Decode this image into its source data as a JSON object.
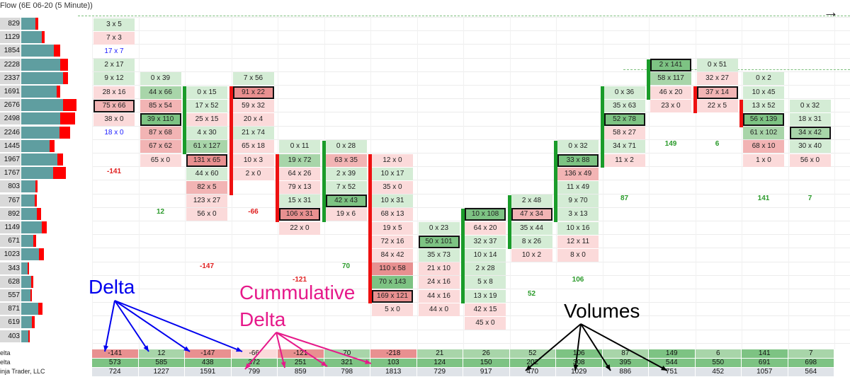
{
  "window": {
    "title": "Flow (6E 06-20 (5 Minute))",
    "arrow_icon": "arrow-right-icon"
  },
  "colors": {
    "pos_strong": "#7dc383",
    "pos_mid": "#a8d5a9",
    "pos_light": "#d4ecd5",
    "neg_strong": "#e89090",
    "neg_mid": "#f2b4b4",
    "neg_light": "#fbdada",
    "bar_teal": "#5f9ea0",
    "bar_red": "#ff0000",
    "up_bar": "#1a9c2a",
    "down_bar": "#ee1111",
    "blue_text": "#1a1aff",
    "delta_red": "#e02020",
    "delta_green": "#2a9a2a"
  },
  "volume_profile": [
    "829",
    "1129",
    "1854",
    "2228",
    "2337",
    "1691",
    "2676",
    "2498",
    "2246",
    "1445",
    "1967",
    "1767",
    "803",
    "767",
    "892",
    "1149",
    "671",
    "1023",
    "343",
    "628",
    "557",
    "871",
    "619",
    "403"
  ],
  "volume_bars": [
    {
      "teal": 0.29,
      "red": 0.06
    },
    {
      "teal": 0.42,
      "red": 0.05
    },
    {
      "teal": 0.66,
      "red": 0.13
    },
    {
      "teal": 0.79,
      "red": 0.15
    },
    {
      "teal": 0.84,
      "red": 0.1
    },
    {
      "teal": 0.71,
      "red": 0.07
    },
    {
      "teal": 0.84,
      "red": 0.27
    },
    {
      "teal": 0.78,
      "red": 0.3
    },
    {
      "teal": 0.77,
      "red": 0.21
    },
    {
      "teal": 0.57,
      "red": 0.1
    },
    {
      "teal": 0.73,
      "red": 0.12
    },
    {
      "teal": 0.64,
      "red": 0.25
    },
    {
      "teal": 0.28,
      "red": 0.04
    },
    {
      "teal": 0.27,
      "red": 0.04
    },
    {
      "teal": 0.32,
      "red": 0.08
    },
    {
      "teal": 0.42,
      "red": 0.1
    },
    {
      "teal": 0.24,
      "red": 0.06
    },
    {
      "teal": 0.36,
      "red": 0.1
    },
    {
      "teal": 0.13,
      "red": 0.03
    },
    {
      "teal": 0.2,
      "red": 0.04
    },
    {
      "teal": 0.18,
      "red": 0.03
    },
    {
      "teal": 0.34,
      "red": 0.08
    },
    {
      "teal": 0.22,
      "red": 0.06
    },
    {
      "teal": 0.14,
      "red": 0.03
    }
  ],
  "columns": [
    {
      "bar": "none",
      "cells": [
        {
          "r": 1,
          "t": "3 x 5",
          "c": "pos_light"
        },
        {
          "r": 2,
          "t": "7 x 3",
          "c": "neg_light"
        },
        {
          "r": 3,
          "t": "17 x 7",
          "c": "none",
          "blue": true
        },
        {
          "r": 4,
          "t": "2 x 17",
          "c": "pos_light"
        },
        {
          "r": 5,
          "t": "9 x 12",
          "c": "pos_light"
        },
        {
          "r": 6,
          "t": "28 x 16",
          "c": "neg_light"
        },
        {
          "r": 7,
          "t": "75 x 66",
          "c": "neg_mid",
          "box": true
        },
        {
          "r": 8,
          "t": "38 x 0",
          "c": "neg_light"
        },
        {
          "r": 9,
          "t": "18 x 0",
          "c": "none",
          "blue": true
        }
      ],
      "delta": "-141",
      "dr": 12
    },
    {
      "bar": "none",
      "cells": [
        {
          "r": 5,
          "t": "0 x 39",
          "c": "pos_light"
        },
        {
          "r": 6,
          "t": "44 x 66",
          "c": "pos_mid"
        },
        {
          "r": 7,
          "t": "85 x 54",
          "c": "neg_mid"
        },
        {
          "r": 8,
          "t": "39 x 110",
          "c": "pos_strong",
          "box": true
        },
        {
          "r": 9,
          "t": "87 x 68",
          "c": "neg_mid"
        },
        {
          "r": 10,
          "t": "67 x 62",
          "c": "neg_mid"
        },
        {
          "r": 11,
          "t": "65 x 0",
          "c": "neg_light"
        }
      ],
      "delta": "12",
      "dr": 15
    },
    {
      "bar": "up",
      "bt": 6,
      "bb": 10,
      "cells": [
        {
          "r": 6,
          "t": "0 x 15",
          "c": "pos_light"
        },
        {
          "r": 7,
          "t": "17 x 52",
          "c": "pos_light"
        },
        {
          "r": 8,
          "t": "25 x 15",
          "c": "neg_light"
        },
        {
          "r": 9,
          "t": "4 x 30",
          "c": "pos_light"
        },
        {
          "r": 10,
          "t": "61 x 127",
          "c": "pos_mid"
        },
        {
          "r": 11,
          "t": "131 x 65",
          "c": "neg_strong",
          "box": true
        },
        {
          "r": 12,
          "t": "44 x 60",
          "c": "pos_light"
        },
        {
          "r": 13,
          "t": "82 x 5",
          "c": "neg_mid"
        },
        {
          "r": 14,
          "t": "123 x 27",
          "c": "neg_light"
        },
        {
          "r": 15,
          "t": "56 x 0",
          "c": "neg_light"
        }
      ],
      "delta": "-147",
      "dr": 19
    },
    {
      "bar": "down",
      "bt": 6,
      "bb": 13,
      "cells": [
        {
          "r": 5,
          "t": "7 x 56",
          "c": "pos_light"
        },
        {
          "r": 6,
          "t": "91 x 22",
          "c": "neg_strong",
          "box": true
        },
        {
          "r": 7,
          "t": "59 x 32",
          "c": "neg_light"
        },
        {
          "r": 8,
          "t": "20 x 4",
          "c": "neg_light"
        },
        {
          "r": 9,
          "t": "21 x 74",
          "c": "pos_light"
        },
        {
          "r": 10,
          "t": "65 x 18",
          "c": "neg_light"
        },
        {
          "r": 11,
          "t": "10 x 3",
          "c": "neg_light"
        },
        {
          "r": 12,
          "t": "2 x 0",
          "c": "neg_light"
        }
      ],
      "delta": "-66",
      "dr": 15
    },
    {
      "bar": "down",
      "bt": 11,
      "bb": 15,
      "cells": [
        {
          "r": 10,
          "t": "0 x 11",
          "c": "pos_light"
        },
        {
          "r": 11,
          "t": "19 x 72",
          "c": "pos_mid"
        },
        {
          "r": 12,
          "t": "64 x 26",
          "c": "neg_light"
        },
        {
          "r": 13,
          "t": "79 x 13",
          "c": "neg_light"
        },
        {
          "r": 14,
          "t": "15 x 31",
          "c": "pos_light"
        },
        {
          "r": 15,
          "t": "106 x 31",
          "c": "neg_strong",
          "box": true
        },
        {
          "r": 16,
          "t": "22 x 0",
          "c": "neg_light"
        }
      ],
      "delta": "-121",
      "dr": 20
    },
    {
      "bar": "up",
      "bt": 10,
      "bb": 15,
      "cells": [
        {
          "r": 10,
          "t": "0 x 28",
          "c": "pos_light"
        },
        {
          "r": 11,
          "t": "63 x 35",
          "c": "neg_mid"
        },
        {
          "r": 12,
          "t": "2 x 39",
          "c": "pos_light"
        },
        {
          "r": 13,
          "t": "7 x 52",
          "c": "pos_light"
        },
        {
          "r": 14,
          "t": "42 x 43",
          "c": "pos_strong",
          "box": true
        },
        {
          "r": 15,
          "t": "19 x 6",
          "c": "neg_light"
        }
      ],
      "delta": "70",
      "dr": 19
    },
    {
      "bar": "down",
      "bt": 11,
      "bb": 21,
      "cells": [
        {
          "r": 11,
          "t": "12 x 0",
          "c": "neg_light"
        },
        {
          "r": 12,
          "t": "10 x 17",
          "c": "pos_light"
        },
        {
          "r": 13,
          "t": "35 x 0",
          "c": "neg_light"
        },
        {
          "r": 14,
          "t": "10 x 31",
          "c": "pos_light"
        },
        {
          "r": 15,
          "t": "68 x 13",
          "c": "neg_light"
        },
        {
          "r": 16,
          "t": "19 x 5",
          "c": "neg_light"
        },
        {
          "r": 17,
          "t": "72 x 16",
          "c": "neg_light"
        },
        {
          "r": 18,
          "t": "84 x 42",
          "c": "neg_light"
        },
        {
          "r": 19,
          "t": "110 x 58",
          "c": "neg_strong"
        },
        {
          "r": 20,
          "t": "70 x 143",
          "c": "pos_strong"
        },
        {
          "r": 21,
          "t": "169 x 121",
          "c": "neg_strong",
          "box": true
        },
        {
          "r": 22,
          "t": "5 x 0",
          "c": "neg_light"
        }
      ],
      "delta": "",
      "dr": 0
    },
    {
      "bar": "none",
      "cells": [
        {
          "r": 16,
          "t": "0 x 23",
          "c": "pos_light"
        },
        {
          "r": 17,
          "t": "50 x 101",
          "c": "pos_strong",
          "box": true
        },
        {
          "r": 18,
          "t": "35 x 73",
          "c": "pos_light"
        },
        {
          "r": 19,
          "t": "21 x 10",
          "c": "neg_light"
        },
        {
          "r": 20,
          "t": "24 x 16",
          "c": "neg_light"
        },
        {
          "r": 21,
          "t": "44 x 16",
          "c": "neg_light"
        },
        {
          "r": 22,
          "t": "44 x 0",
          "c": "neg_light"
        }
      ],
      "delta": "",
      "dr": 0
    },
    {
      "bar": "up",
      "bt": 15,
      "bb": 21,
      "cells": [
        {
          "r": 15,
          "t": "10 x 108",
          "c": "pos_strong",
          "box": true
        },
        {
          "r": 16,
          "t": "64 x 20",
          "c": "neg_light"
        },
        {
          "r": 17,
          "t": "32 x 37",
          "c": "pos_light"
        },
        {
          "r": 18,
          "t": "10 x 14",
          "c": "pos_light"
        },
        {
          "r": 19,
          "t": "2 x 28",
          "c": "pos_light"
        },
        {
          "r": 20,
          "t": "5 x 8",
          "c": "pos_light"
        },
        {
          "r": 21,
          "t": "13 x 19",
          "c": "pos_light"
        },
        {
          "r": 22,
          "t": "42 x 15",
          "c": "neg_light"
        },
        {
          "r": 23,
          "t": "45 x 0",
          "c": "neg_light"
        }
      ],
      "delta": "",
      "dr": 0
    },
    {
      "bar": "up",
      "bt": 14,
      "bb": 17,
      "cells": [
        {
          "r": 14,
          "t": "2 x 48",
          "c": "pos_light"
        },
        {
          "r": 15,
          "t": "47 x 34",
          "c": "neg_mid",
          "box": true
        },
        {
          "r": 16,
          "t": "35 x 44",
          "c": "pos_light"
        },
        {
          "r": 17,
          "t": "8 x 26",
          "c": "pos_light"
        },
        {
          "r": 18,
          "t": "10 x 2",
          "c": "neg_light"
        }
      ],
      "delta": "52",
      "dr": 21
    },
    {
      "bar": "up",
      "bt": 10,
      "bb": 15,
      "cells": [
        {
          "r": 10,
          "t": "0 x 32",
          "c": "pos_light"
        },
        {
          "r": 11,
          "t": "33 x 88",
          "c": "pos_strong",
          "box": true
        },
        {
          "r": 12,
          "t": "136 x 49",
          "c": "neg_mid"
        },
        {
          "r": 13,
          "t": "11 x 49",
          "c": "pos_light"
        },
        {
          "r": 14,
          "t": "9 x 70",
          "c": "pos_light"
        },
        {
          "r": 15,
          "t": "3 x 13",
          "c": "pos_light"
        },
        {
          "r": 16,
          "t": "10 x 16",
          "c": "pos_light"
        },
        {
          "r": 17,
          "t": "12 x 11",
          "c": "neg_light"
        },
        {
          "r": 18,
          "t": "8 x 0",
          "c": "neg_light"
        }
      ],
      "delta": "106",
      "dr": 20
    },
    {
      "bar": "up",
      "bt": 6,
      "bb": 11,
      "cells": [
        {
          "r": 6,
          "t": "0 x 36",
          "c": "pos_light"
        },
        {
          "r": 7,
          "t": "35 x 63",
          "c": "pos_light"
        },
        {
          "r": 8,
          "t": "52 x 78",
          "c": "pos_strong",
          "box": true
        },
        {
          "r": 9,
          "t": "58 x 27",
          "c": "neg_light"
        },
        {
          "r": 10,
          "t": "34 x 71",
          "c": "pos_light"
        },
        {
          "r": 11,
          "t": "11 x 2",
          "c": "neg_light"
        }
      ],
      "delta": "87",
      "dr": 14
    },
    {
      "bar": "up",
      "bt": 4,
      "bb": 6,
      "cells": [
        {
          "r": 4,
          "t": "2 x 141",
          "c": "pos_strong",
          "box": true
        },
        {
          "r": 5,
          "t": "58 x 117",
          "c": "pos_mid"
        },
        {
          "r": 6,
          "t": "46 x 20",
          "c": "neg_light"
        },
        {
          "r": 7,
          "t": "23 x 0",
          "c": "neg_light"
        }
      ],
      "delta": "149",
      "dr": 10
    },
    {
      "bar": "down",
      "bt": 6,
      "bb": 7,
      "cells": [
        {
          "r": 4,
          "t": "0 x 51",
          "c": "pos_light"
        },
        {
          "r": 5,
          "t": "32 x 27",
          "c": "neg_light"
        },
        {
          "r": 6,
          "t": "37 x 14",
          "c": "neg_mid",
          "box": true
        },
        {
          "r": 7,
          "t": "22 x 5",
          "c": "neg_light"
        }
      ],
      "delta": "6",
      "dr": 10
    },
    {
      "bar": "down",
      "bt": 7,
      "bb": 8,
      "cells": [
        {
          "r": 5,
          "t": "0 x 2",
          "c": "pos_light"
        },
        {
          "r": 6,
          "t": "10 x 45",
          "c": "pos_light"
        },
        {
          "r": 7,
          "t": "13 x 52",
          "c": "pos_light"
        },
        {
          "r": 8,
          "t": "56 x 139",
          "c": "pos_strong",
          "box": true
        },
        {
          "r": 9,
          "t": "61 x 102",
          "c": "pos_mid"
        },
        {
          "r": 10,
          "t": "68 x 10",
          "c": "neg_mid"
        },
        {
          "r": 11,
          "t": "1 x 0",
          "c": "neg_light"
        }
      ],
      "delta": "141",
      "dr": 14
    },
    {
      "bar": "none",
      "cells": [
        {
          "r": 7,
          "t": "0 x 32",
          "c": "pos_light"
        },
        {
          "r": 8,
          "t": "18 x 31",
          "c": "pos_light"
        },
        {
          "r": 9,
          "t": "34 x 42",
          "c": "pos_mid",
          "box": true
        },
        {
          "r": 10,
          "t": "30 x 40",
          "c": "pos_light"
        },
        {
          "r": 11,
          "t": "56 x 0",
          "c": "neg_light"
        }
      ],
      "delta": "7",
      "dr": 14
    }
  ],
  "summary": {
    "row_labels": [
      "elta",
      "elta",
      "inja Trader, LLC"
    ],
    "delta": [
      "-141",
      "12",
      "-147",
      "-66",
      "-121",
      "70",
      "-218",
      "21",
      "26",
      "52",
      "106",
      "87",
      "149",
      "6",
      "141",
      "7"
    ],
    "cum_delta": [
      "573",
      "585",
      "438",
      "372",
      "251",
      "321",
      "103",
      "124",
      "150",
      "202",
      "308",
      "395",
      "544",
      "550",
      "691",
      "698"
    ],
    "volume": [
      "724",
      "1227",
      "1591",
      "799",
      "859",
      "798",
      "1813",
      "729",
      "917",
      "470",
      "1029",
      "886",
      "751",
      "452",
      "1057",
      "564"
    ]
  },
  "annotations": {
    "delta": "Delta",
    "cum_line1": "Cummulative",
    "cum_line2": "Delta",
    "volumes": "Volumes"
  }
}
